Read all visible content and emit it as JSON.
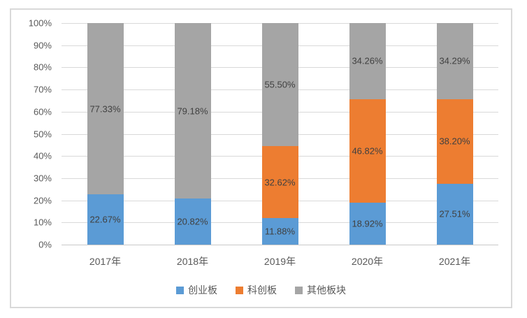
{
  "chart_data": {
    "type": "bar",
    "variant": "stacked-100-percent-column",
    "title": "",
    "xlabel": "",
    "ylabel": "",
    "categories": [
      "2017年",
      "2018年",
      "2019年",
      "2020年",
      "2021年"
    ],
    "series": [
      {
        "name": "创业板",
        "color": "#5B9BD5",
        "values": [
          22.67,
          20.82,
          11.88,
          18.92,
          27.51
        ],
        "labels": [
          "22.67%",
          "20.82%",
          "11.88%",
          "18.92%",
          "27.51%"
        ]
      },
      {
        "name": "科创板",
        "color": "#ED7D31",
        "values": [
          0,
          0,
          32.62,
          46.82,
          38.2
        ],
        "labels": [
          "",
          "",
          "32.62%",
          "46.82%",
          "38.20%"
        ]
      },
      {
        "name": "其他板块",
        "color": "#A5A5A5",
        "values": [
          77.33,
          79.18,
          55.5,
          34.26,
          34.29
        ],
        "labels": [
          "77.33%",
          "79.18%",
          "55.50%",
          "34.26%",
          "34.29%"
        ]
      }
    ],
    "y_ticks": [
      "100%",
      "90%",
      "80%",
      "70%",
      "60%",
      "50%",
      "40%",
      "30%",
      "20%",
      "10%",
      "0%"
    ],
    "ylim": [
      0,
      100
    ],
    "grid": true,
    "legend_position": "bottom"
  },
  "colors": {
    "grid": "#D9D9D9",
    "axis": "#C9C9C9",
    "frame_border": "#D9D9D9",
    "tick_text": "#595959",
    "data_label_text": "#404040",
    "background": "#FFFFFF"
  }
}
